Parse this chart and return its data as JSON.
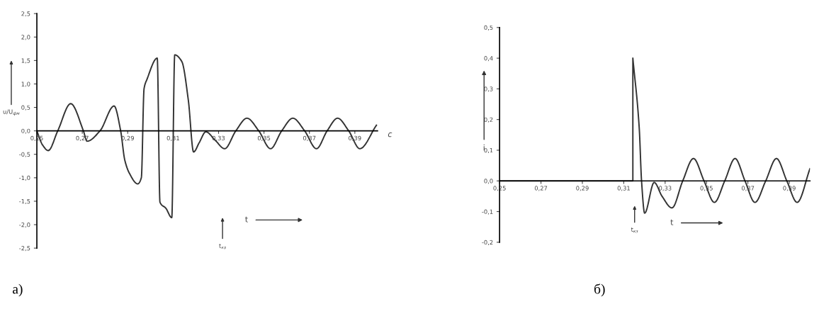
{
  "chart_data": [
    {
      "type": "line",
      "xlabel": "c",
      "ylabel": "u/U$_{фм}$",
      "x": [
        0.25,
        0.2525,
        0.255,
        0.2592,
        0.2649,
        0.2705,
        0.2721,
        0.2778,
        0.284,
        0.2869,
        0.2887,
        0.2907,
        0.2944,
        0.296,
        0.2972,
        0.2985,
        0.303,
        0.3042,
        0.3068,
        0.3094,
        0.3107,
        0.3138,
        0.3167,
        0.319,
        0.3215,
        0.3244,
        0.3285,
        0.3327,
        0.3376,
        0.3425,
        0.3477,
        0.3529,
        0.3578,
        0.3627,
        0.3679,
        0.3731,
        0.3778,
        0.3824,
        0.3873,
        0.3922,
        0.3995
      ],
      "series": [
        {
          "color": "#333333",
          "values": [
            0.0,
            -0.3,
            -0.42,
            0.0,
            0.58,
            0.0,
            -0.22,
            0.0,
            0.53,
            0.0,
            -0.62,
            -0.9,
            -1.13,
            -1.0,
            0.9,
            1.1,
            1.55,
            -1.52,
            -1.65,
            -1.85,
            1.62,
            1.48,
            0.65,
            -0.45,
            -0.25,
            -0.02,
            -0.2,
            -0.38,
            0.0,
            0.27,
            0.0,
            -0.38,
            0.0,
            0.27,
            0.0,
            -0.38,
            0.0,
            0.27,
            0.0,
            -0.38,
            0.12
          ]
        }
      ],
      "xlim": [
        0.25,
        0.4
      ],
      "ylim": [
        -2.5,
        2.5
      ],
      "xticks": [
        {
          "value": 0.25,
          "label": "0,25"
        },
        {
          "value": 0.27,
          "label": "0,27"
        },
        {
          "value": 0.29,
          "label": "0,29"
        },
        {
          "value": 0.31,
          "label": "0,31"
        },
        {
          "value": 0.33,
          "label": "0,33"
        },
        {
          "value": 0.35,
          "label": "0,35"
        },
        {
          "value": 0.37,
          "label": "0,37"
        },
        {
          "value": 0.39,
          "label": "0,39"
        }
      ],
      "yticks": [
        {
          "value": -2.5,
          "label": "-2,5"
        },
        {
          "value": -2,
          "label": "-2,0"
        },
        {
          "value": -1.5,
          "label": "-1,5"
        },
        {
          "value": -1,
          "label": "-1,0"
        },
        {
          "value": -0.5,
          "label": "-0,5"
        },
        {
          "value": 0,
          "label": "0,0"
        },
        {
          "value": 0.5,
          "label": "0,5"
        },
        {
          "value": 1,
          "label": "1,0"
        },
        {
          "value": 1.5,
          "label": "1,5"
        },
        {
          "value": 2,
          "label": "2,0"
        },
        {
          "value": 2.5,
          "label": "2,5"
        }
      ],
      "annotations": [
        "t$_{кз}$",
        "t",
        "а)"
      ],
      "grid": false,
      "marker": "none",
      "line_style": "solid"
    },
    {
      "type": "line",
      "ylabel": "i",
      "x": [
        0.25,
        0.3144,
        0.3144,
        0.3175,
        0.3186,
        0.3201,
        0.3247,
        0.3285,
        0.3333,
        0.3385,
        0.3437,
        0.3488,
        0.3538,
        0.3588,
        0.3638,
        0.3686,
        0.3734,
        0.3786,
        0.3838,
        0.3888,
        0.3938,
        0.4
      ],
      "series": [
        {
          "color": "#333333",
          "values": [
            0.0,
            0.0,
            0.4,
            0.17,
            0.0,
            -0.105,
            -0.005,
            -0.05,
            -0.088,
            0.0,
            0.073,
            0.0,
            -0.07,
            0.0,
            0.073,
            0.0,
            -0.07,
            0.0,
            0.073,
            0.0,
            -0.07,
            0.04
          ]
        }
      ],
      "xlim": [
        0.25,
        0.4
      ],
      "ylim": [
        -0.2,
        0.5
      ],
      "xticks": [
        {
          "value": 0.25,
          "label": "0,25"
        },
        {
          "value": 0.27,
          "label": "0,27"
        },
        {
          "value": 0.29,
          "label": "0,29"
        },
        {
          "value": 0.31,
          "label": "0,31"
        },
        {
          "value": 0.33,
          "label": "0,33"
        },
        {
          "value": 0.35,
          "label": "0,35"
        },
        {
          "value": 0.37,
          "label": "0,37"
        },
        {
          "value": 0.39,
          "label": "0,39"
        }
      ],
      "yticks": [
        {
          "value": -0.2,
          "label": "-0,2"
        },
        {
          "value": -0.1,
          "label": "-0,1"
        },
        {
          "value": 0,
          "label": "0,0"
        },
        {
          "value": 0.1,
          "label": "0,1"
        },
        {
          "value": 0.2,
          "label": "0,2"
        },
        {
          "value": 0.3,
          "label": "0,3"
        },
        {
          "value": 0.4,
          "label": "0,4"
        },
        {
          "value": 0.5,
          "label": "0,5"
        }
      ],
      "annotations": [
        "t$_{кз}$",
        "t",
        "б)"
      ],
      "grid": false,
      "marker": "none",
      "line_style": "solid"
    }
  ]
}
